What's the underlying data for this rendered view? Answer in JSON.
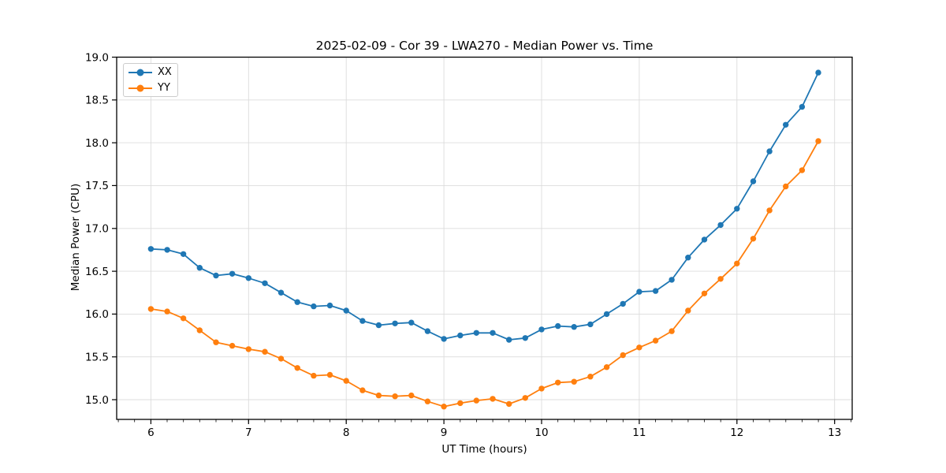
{
  "chart_data": {
    "type": "line",
    "title": "2025-02-09 - Cor 39 - LWA270 - Median Power vs. Time",
    "xlabel": "UT Time (hours)",
    "ylabel": "Median Power (CPU)",
    "xlim": [
      5.65,
      13.18
    ],
    "ylim": [
      14.77,
      19.0
    ],
    "xticks": [
      6,
      7,
      8,
      9,
      10,
      11,
      12,
      13
    ],
    "yticks": [
      15.0,
      15.5,
      16.0,
      16.5,
      17.0,
      17.5,
      18.0,
      18.5,
      19.0
    ],
    "x_minor_tick_step_hours": 0.16667,
    "grid": true,
    "legend_position": "upper left",
    "marker": "circle",
    "x": [
      6.0,
      6.167,
      6.333,
      6.5,
      6.667,
      6.833,
      7.0,
      7.167,
      7.333,
      7.5,
      7.667,
      7.833,
      8.0,
      8.167,
      8.333,
      8.5,
      8.667,
      8.833,
      9.0,
      9.167,
      9.333,
      9.5,
      9.667,
      9.833,
      10.0,
      10.167,
      10.333,
      10.5,
      10.667,
      10.833,
      11.0,
      11.167,
      11.333,
      11.5,
      11.667,
      11.833,
      12.0,
      12.167,
      12.333,
      12.5,
      12.667,
      12.833
    ],
    "series": [
      {
        "name": "XX",
        "color": "#1f77b4",
        "values": [
          16.76,
          16.75,
          16.7,
          16.54,
          16.45,
          16.47,
          16.42,
          16.36,
          16.25,
          16.14,
          16.09,
          16.1,
          16.04,
          15.92,
          15.87,
          15.89,
          15.9,
          15.8,
          15.71,
          15.75,
          15.78,
          15.78,
          15.7,
          15.72,
          15.82,
          15.86,
          15.85,
          15.88,
          16.0,
          16.12,
          16.26,
          16.27,
          16.4,
          16.66,
          16.87,
          17.04,
          17.23,
          17.55,
          17.9,
          18.21,
          18.42,
          18.82
        ]
      },
      {
        "name": "YY",
        "color": "#ff7f0e",
        "values": [
          16.06,
          16.03,
          15.95,
          15.81,
          15.67,
          15.63,
          15.59,
          15.56,
          15.48,
          15.37,
          15.28,
          15.29,
          15.22,
          15.11,
          15.05,
          15.04,
          15.05,
          14.98,
          14.92,
          14.96,
          14.99,
          15.01,
          14.95,
          15.02,
          15.13,
          15.2,
          15.21,
          15.27,
          15.38,
          15.52,
          15.61,
          15.69,
          15.8,
          16.04,
          16.24,
          16.41,
          16.59,
          16.88,
          17.21,
          17.49,
          17.68,
          18.02
        ]
      }
    ]
  }
}
